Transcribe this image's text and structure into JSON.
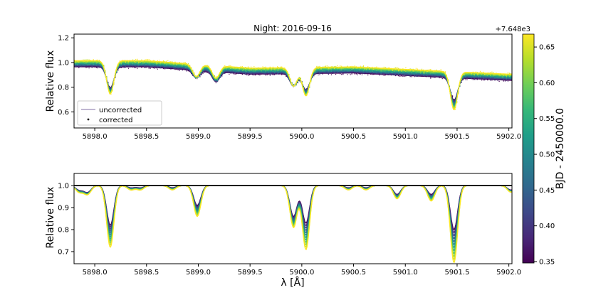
{
  "chart_data": [
    {
      "type": "line",
      "title": "Night: 2016-09-16",
      "xlabel": "",
      "ylabel": "Relative flux",
      "xlim": [
        5897.8,
        5902.03
      ],
      "ylim": [
        0.47,
        1.23
      ],
      "x_ticks": [
        5898.0,
        5898.5,
        5899.0,
        5899.5,
        5900.0,
        5900.5,
        5901.0,
        5901.5,
        5902.0
      ],
      "x_tick_labels": [
        "5898.0",
        "5898.5",
        "5899.0",
        "5899.5",
        "5900.0",
        "5900.5",
        "5901.0",
        "5901.5",
        "5902.0"
      ],
      "y_ticks": [
        0.6,
        0.8,
        1.0,
        1.2
      ],
      "y_tick_labels": [
        "0.6",
        "0.8",
        "1.0",
        "1.2"
      ],
      "continuum": [
        [
          5897.8,
          0.99
        ],
        [
          5898.5,
          0.99
        ],
        [
          5899.0,
          0.96
        ],
        [
          5899.5,
          0.93
        ],
        [
          5900.5,
          0.94
        ],
        [
          5901.5,
          0.9
        ],
        [
          5902.03,
          0.88
        ]
      ],
      "absorption_lines": [
        {
          "center": 5898.15,
          "depth_min": 0.17,
          "depth_max": 0.27
        },
        {
          "center": 5898.98,
          "depth_min": 0.06,
          "depth_max": 0.1
        },
        {
          "center": 5899.17,
          "depth_min": 0.08,
          "depth_max": 0.1
        },
        {
          "center": 5899.92,
          "depth_min": 0.1,
          "depth_max": 0.15
        },
        {
          "center": 5900.04,
          "depth_min": 0.13,
          "depth_max": 0.23
        },
        {
          "center": 5901.47,
          "depth_min": 0.18,
          "depth_max": 0.31
        }
      ],
      "legend": {
        "position": "lower-left",
        "entries": [
          {
            "label": "uncorrected",
            "marker": "line",
            "color": "#9a8cb8"
          },
          {
            "label": "corrected",
            "marker": "dot",
            "color": "#000000"
          }
        ]
      },
      "offset_label": "+7.648e3",
      "grid": false
    },
    {
      "type": "line",
      "title": "",
      "xlabel": "λ [Å]",
      "ylabel": "Relative flux",
      "xlim": [
        5897.8,
        5902.03
      ],
      "ylim": [
        0.645,
        1.055
      ],
      "x_ticks": [
        5898.0,
        5898.5,
        5899.0,
        5899.5,
        5900.0,
        5900.5,
        5901.0,
        5901.5,
        5902.0
      ],
      "x_tick_labels": [
        "5898.0",
        "5898.5",
        "5899.0",
        "5899.5",
        "5900.0",
        "5900.5",
        "5901.0",
        "5901.5",
        "5902.0"
      ],
      "y_ticks": [
        0.7,
        0.8,
        0.9,
        1.0
      ],
      "y_tick_labels": [
        "0.7",
        "0.8",
        "0.9",
        "1.0"
      ],
      "reference_level": 1.0,
      "absorption_lines": [
        {
          "center": 5897.85,
          "depth_min": 0.02,
          "depth_max": 0.03
        },
        {
          "center": 5897.93,
          "depth_min": 0.03,
          "depth_max": 0.04
        },
        {
          "center": 5898.15,
          "depth_min": 0.18,
          "depth_max": 0.28
        },
        {
          "center": 5898.35,
          "depth_min": 0.01,
          "depth_max": 0.02
        },
        {
          "center": 5898.44,
          "depth_min": 0.01,
          "depth_max": 0.02
        },
        {
          "center": 5898.75,
          "depth_min": 0.01,
          "depth_max": 0.02
        },
        {
          "center": 5898.99,
          "depth_min": 0.09,
          "depth_max": 0.14
        },
        {
          "center": 5899.92,
          "depth_min": 0.14,
          "depth_max": 0.19
        },
        {
          "center": 5900.04,
          "depth_min": 0.17,
          "depth_max": 0.29
        },
        {
          "center": 5900.45,
          "depth_min": 0.01,
          "depth_max": 0.02
        },
        {
          "center": 5900.62,
          "depth_min": 0.01,
          "depth_max": 0.02
        },
        {
          "center": 5900.92,
          "depth_min": 0.04,
          "depth_max": 0.06
        },
        {
          "center": 5901.25,
          "depth_min": 0.04,
          "depth_max": 0.07
        },
        {
          "center": 5901.47,
          "depth_min": 0.2,
          "depth_max": 0.35
        },
        {
          "center": 5902.02,
          "depth_min": 0.02,
          "depth_max": 0.03
        }
      ],
      "grid": false
    }
  ],
  "colorbar": {
    "label": "BJD - 2450000.0",
    "colormap": "viridis",
    "range": [
      0.348,
      0.668
    ],
    "ticks": [
      0.35,
      0.4,
      0.45,
      0.5,
      0.55,
      0.6,
      0.65
    ],
    "tick_labels": [
      "0.35",
      "0.40",
      "0.45",
      "0.50",
      "0.55",
      "0.60",
      "0.65"
    ],
    "offset_label": "+7.648e3"
  },
  "n_spectra": 12,
  "colors": {
    "viridis": [
      "#440154",
      "#482878",
      "#3e4989",
      "#31688e",
      "#26828e",
      "#1f9e89",
      "#35b779",
      "#6ece58",
      "#b5de2b",
      "#fde725"
    ]
  }
}
